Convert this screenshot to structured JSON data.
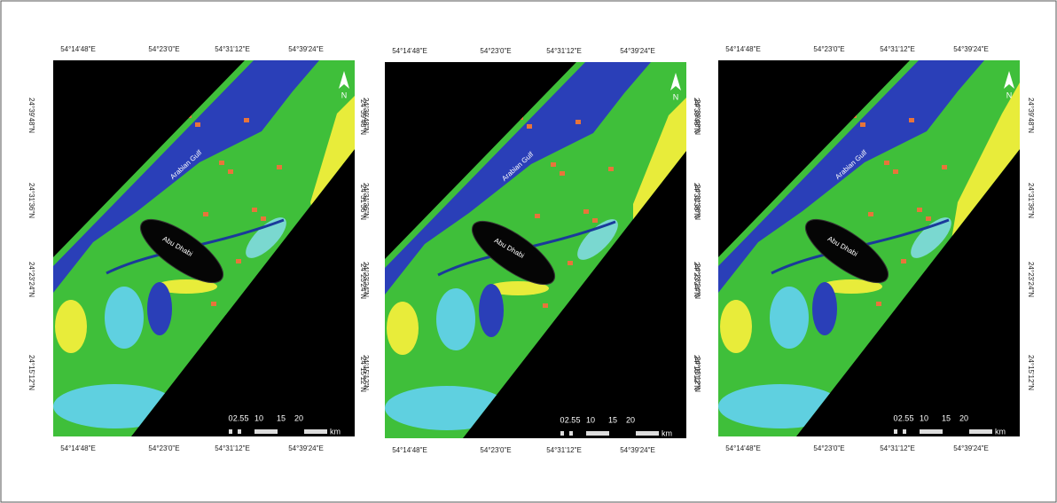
{
  "panels": [
    {
      "top_longitudes": [
        "54°14'48\"E",
        "54°23'0\"E",
        "54°31'12\"E",
        "54°39'24\"E"
      ],
      "bottom_longitudes": [
        "54°14'48\"E",
        "54°23'0\"E",
        "54°31'12\"E",
        "54°39'24\"E"
      ],
      "left_latitudes": [
        "24°39'48\"N",
        "24°31'36\"N",
        "24°23'24\"N",
        "24°15'12\"N"
      ],
      "right_latitudes": [
        "24°39'48\"N",
        "24°31'36\"N",
        "24°23'24\"N",
        "24°15'12\"N"
      ],
      "gulf_label": "Arabian Gulf",
      "city_label": "Abu Dhabi",
      "north": "N",
      "scale_labels": [
        "0",
        "2.5",
        "5",
        "10",
        "15",
        "20"
      ],
      "scale_unit": "km"
    },
    {
      "top_longitudes": [
        "54°14'48\"E",
        "54°23'0\"E",
        "54°31'12\"E",
        "54°39'24\"E"
      ],
      "bottom_longitudes": [
        "54°14'48\"E",
        "54°23'0\"E",
        "54°31'12\"E",
        "54°39'24\"E"
      ],
      "left_latitudes": [
        "24°39'48\"N",
        "24°31'36\"N",
        "24°23'24\"N",
        "24°15'12\"N"
      ],
      "right_latitudes": [
        "24°39'48\"N",
        "24°31'36\"N",
        "24°23'24\"N",
        "24°15'12\"N"
      ],
      "gulf_label": "Arabian Gulf",
      "city_label": "Abu Dhabi",
      "north": "N",
      "scale_labels": [
        "0",
        "2.5",
        "5",
        "10",
        "15",
        "20"
      ],
      "scale_unit": "km"
    },
    {
      "top_longitudes": [
        "54°14'48\"E",
        "54°23'0\"E",
        "54°31'12\"E",
        "54°39'24\"E"
      ],
      "bottom_longitudes": [
        "54°14'48\"E",
        "54°23'0\"E",
        "54°31'12\"E",
        "54°39'24\"E"
      ],
      "left_latitudes": [
        "24°39'48\"N",
        "24°31'36\"N",
        "24°23'24\"N",
        "24°15'12\"N"
      ],
      "right_latitudes": [
        "24°39'48\"N",
        "24°31'36\"N",
        "24°23'24\"N",
        "24°15'12\"N"
      ],
      "gulf_label": "Arabian Gulf",
      "city_label": "Abu Dhabi",
      "north": "N",
      "scale_labels": [
        "0",
        "2.5",
        "5",
        "10",
        "15",
        "20"
      ],
      "scale_unit": "km"
    }
  ]
}
